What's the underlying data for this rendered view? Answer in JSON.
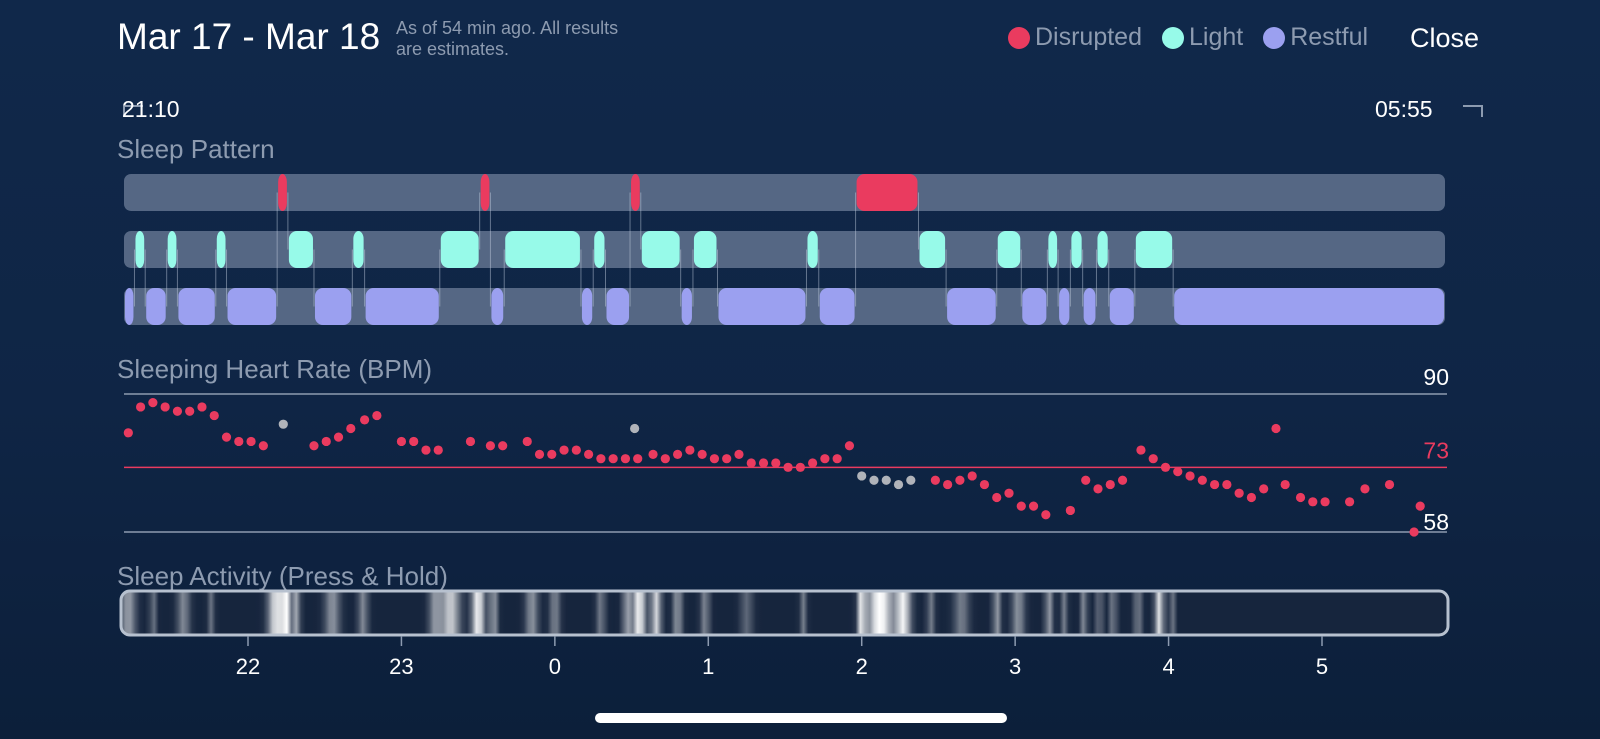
{
  "header": {
    "title": "Mar 17 - Mar 18",
    "as_of_line1": "As of 54 min ago. All results",
    "as_of_line2": "are estimates.",
    "close_label": "Close"
  },
  "legend": [
    {
      "label": "Disrupted",
      "color": "#ea3b5f"
    },
    {
      "label": "Light",
      "color": "#97fae9"
    },
    {
      "label": "Restful",
      "color": "#9ba0f0"
    }
  ],
  "range": {
    "start": "21:10",
    "end": "05:55"
  },
  "sleep_pattern": {
    "title": "Sleep Pattern",
    "track_color": "#556784",
    "stage_order": [
      "disrupted",
      "light",
      "restful"
    ],
    "segments": [
      [
        "restful",
        21.17,
        21.26
      ],
      [
        "light",
        21.26,
        21.33
      ],
      [
        "restful",
        21.33,
        21.47
      ],
      [
        "light",
        21.47,
        21.54
      ],
      [
        "restful",
        21.54,
        21.79
      ],
      [
        "light",
        21.79,
        21.86
      ],
      [
        "restful",
        21.86,
        22.19
      ],
      [
        "disrupted",
        22.19,
        22.26
      ],
      [
        "light",
        22.26,
        22.43
      ],
      [
        "restful",
        22.43,
        22.68
      ],
      [
        "light",
        22.68,
        22.76
      ],
      [
        "restful",
        22.76,
        23.25
      ],
      [
        "light",
        23.25,
        23.51
      ],
      [
        "disrupted",
        23.51,
        23.58
      ],
      [
        "restful",
        23.58,
        23.67
      ],
      [
        "light",
        23.67,
        24.17
      ],
      [
        "restful",
        24.17,
        24.25
      ],
      [
        "light",
        24.25,
        24.33
      ],
      [
        "restful",
        24.33,
        24.49
      ],
      [
        "disrupted",
        24.49,
        24.56
      ],
      [
        "light",
        24.56,
        24.82
      ],
      [
        "restful",
        24.82,
        24.9
      ],
      [
        "light",
        24.9,
        25.06
      ],
      [
        "restful",
        25.06,
        25.64
      ],
      [
        "light",
        25.64,
        25.72
      ],
      [
        "restful",
        25.72,
        25.96
      ],
      [
        "disrupted",
        25.96,
        26.37
      ],
      [
        "light",
        26.37,
        26.55
      ],
      [
        "restful",
        26.55,
        26.88
      ],
      [
        "light",
        26.88,
        27.04
      ],
      [
        "restful",
        27.04,
        27.21
      ],
      [
        "light",
        27.21,
        27.28
      ],
      [
        "restful",
        27.28,
        27.36
      ],
      [
        "light",
        27.36,
        27.44
      ],
      [
        "restful",
        27.44,
        27.53
      ],
      [
        "light",
        27.53,
        27.61
      ],
      [
        "restful",
        27.61,
        27.78
      ],
      [
        "light",
        27.78,
        28.03
      ],
      [
        "restful",
        28.03,
        29.92
      ]
    ]
  },
  "heart_rate": {
    "title": "Sleeping Heart Rate (BPM)",
    "max_label": "90",
    "avg_label": "73",
    "min_label": "58",
    "ymax": 90,
    "avg": 73,
    "ymin": 58,
    "dot_color": "#ea3b5f",
    "grey_color": "#b0b3b9",
    "line_color": "#8d9bb0",
    "avg_line_color": "#ea3b5f",
    "points": [
      [
        21.22,
        81
      ],
      [
        21.3,
        87
      ],
      [
        21.38,
        88
      ],
      [
        21.46,
        87
      ],
      [
        21.54,
        86
      ],
      [
        21.62,
        86
      ],
      [
        21.7,
        87
      ],
      [
        21.78,
        85
      ],
      [
        21.86,
        80
      ],
      [
        21.94,
        79
      ],
      [
        22.02,
        79
      ],
      [
        22.1,
        78
      ],
      [
        22.43,
        78
      ],
      [
        22.51,
        79
      ],
      [
        22.59,
        80
      ],
      [
        22.67,
        82
      ],
      [
        22.76,
        84
      ],
      [
        22.84,
        85
      ],
      [
        23.0,
        79
      ],
      [
        23.08,
        79
      ],
      [
        23.16,
        77
      ],
      [
        23.24,
        77
      ],
      [
        23.45,
        79
      ],
      [
        23.58,
        78
      ],
      [
        23.66,
        78
      ],
      [
        23.82,
        79
      ],
      [
        23.9,
        76
      ],
      [
        23.98,
        76
      ],
      [
        24.06,
        77
      ],
      [
        24.14,
        77
      ],
      [
        24.22,
        76
      ],
      [
        24.3,
        75
      ],
      [
        24.38,
        75
      ],
      [
        24.46,
        75
      ],
      [
        24.54,
        75
      ],
      [
        24.64,
        76
      ],
      [
        24.72,
        75
      ],
      [
        24.8,
        76
      ],
      [
        24.88,
        77
      ],
      [
        24.96,
        76
      ],
      [
        25.04,
        75
      ],
      [
        25.12,
        75
      ],
      [
        25.2,
        76
      ],
      [
        25.28,
        74
      ],
      [
        25.36,
        74
      ],
      [
        25.44,
        74
      ],
      [
        25.52,
        73
      ],
      [
        25.6,
        73
      ],
      [
        25.68,
        74
      ],
      [
        25.76,
        75
      ],
      [
        25.84,
        75
      ],
      [
        25.92,
        78
      ],
      [
        26.48,
        70
      ],
      [
        26.56,
        69
      ],
      [
        26.64,
        70
      ],
      [
        26.72,
        71
      ],
      [
        26.8,
        69
      ],
      [
        26.88,
        66
      ],
      [
        26.96,
        67
      ],
      [
        27.04,
        64
      ],
      [
        27.12,
        64
      ],
      [
        27.2,
        62
      ],
      [
        27.36,
        63
      ],
      [
        27.46,
        70
      ],
      [
        27.54,
        68
      ],
      [
        27.62,
        69
      ],
      [
        27.7,
        70
      ],
      [
        27.82,
        77
      ],
      [
        27.9,
        75
      ],
      [
        27.98,
        73
      ],
      [
        28.06,
        72
      ],
      [
        28.14,
        71
      ],
      [
        28.22,
        70
      ],
      [
        28.3,
        69
      ],
      [
        28.38,
        69
      ],
      [
        28.46,
        67
      ],
      [
        28.54,
        66
      ],
      [
        28.62,
        68
      ],
      [
        28.76,
        69
      ],
      [
        28.86,
        66
      ],
      [
        28.94,
        65
      ],
      [
        29.02,
        65
      ],
      [
        29.18,
        65
      ],
      [
        29.28,
        68
      ],
      [
        29.44,
        69
      ],
      [
        29.6,
        58
      ],
      [
        29.64,
        64
      ]
    ],
    "grey_points": [
      [
        22.23,
        83
      ],
      [
        24.52,
        82
      ],
      [
        26.0,
        71
      ],
      [
        26.08,
        70
      ],
      [
        26.16,
        70
      ],
      [
        26.24,
        69
      ],
      [
        26.32,
        70
      ]
    ],
    "outlier_points": [
      [
        28.7,
        82
      ]
    ]
  },
  "activity": {
    "title": "Sleep Activity (Press & Hold)",
    "border_color": "#b7c1cf",
    "peaks": [
      [
        21.22,
        0.12,
        0.55
      ],
      [
        21.38,
        0.05,
        0.4
      ],
      [
        21.58,
        0.1,
        0.45
      ],
      [
        21.76,
        0.05,
        0.35
      ],
      [
        22.18,
        0.12,
        0.85
      ],
      [
        22.25,
        0.08,
        0.95
      ],
      [
        22.32,
        0.05,
        0.6
      ],
      [
        22.55,
        0.12,
        0.5
      ],
      [
        22.75,
        0.08,
        0.45
      ],
      [
        23.22,
        0.1,
        0.5
      ],
      [
        23.32,
        0.15,
        0.75
      ],
      [
        23.5,
        0.1,
        0.95
      ],
      [
        23.6,
        0.06,
        0.6
      ],
      [
        23.85,
        0.1,
        0.5
      ],
      [
        24.0,
        0.08,
        0.45
      ],
      [
        24.3,
        0.07,
        0.4
      ],
      [
        24.47,
        0.07,
        0.55
      ],
      [
        24.55,
        0.1,
        0.95
      ],
      [
        24.66,
        0.08,
        0.8
      ],
      [
        24.8,
        0.07,
        0.55
      ],
      [
        24.98,
        0.07,
        0.45
      ],
      [
        25.25,
        0.1,
        0.3
      ],
      [
        25.62,
        0.05,
        0.4
      ],
      [
        26.0,
        0.06,
        0.9
      ],
      [
        26.12,
        0.2,
        1.0
      ],
      [
        26.27,
        0.12,
        0.9
      ],
      [
        26.45,
        0.06,
        0.4
      ],
      [
        26.65,
        0.12,
        0.4
      ],
      [
        26.88,
        0.06,
        0.55
      ],
      [
        27.02,
        0.1,
        0.5
      ],
      [
        27.22,
        0.06,
        0.55
      ],
      [
        27.32,
        0.05,
        0.4
      ],
      [
        27.45,
        0.05,
        0.5
      ],
      [
        27.55,
        0.04,
        0.6
      ],
      [
        27.64,
        0.05,
        0.5
      ],
      [
        27.8,
        0.06,
        0.45
      ],
      [
        27.94,
        0.07,
        0.85
      ],
      [
        28.02,
        0.04,
        0.5
      ]
    ]
  },
  "time_axis": {
    "ticks": [
      {
        "label": "22",
        "hour": 22
      },
      {
        "label": "23",
        "hour": 23
      },
      {
        "label": "0",
        "hour": 24
      },
      {
        "label": "1",
        "hour": 25
      },
      {
        "label": "2",
        "hour": 26
      },
      {
        "label": "3",
        "hour": 27
      },
      {
        "label": "4",
        "hour": 28
      },
      {
        "label": "5",
        "hour": 29
      }
    ]
  }
}
